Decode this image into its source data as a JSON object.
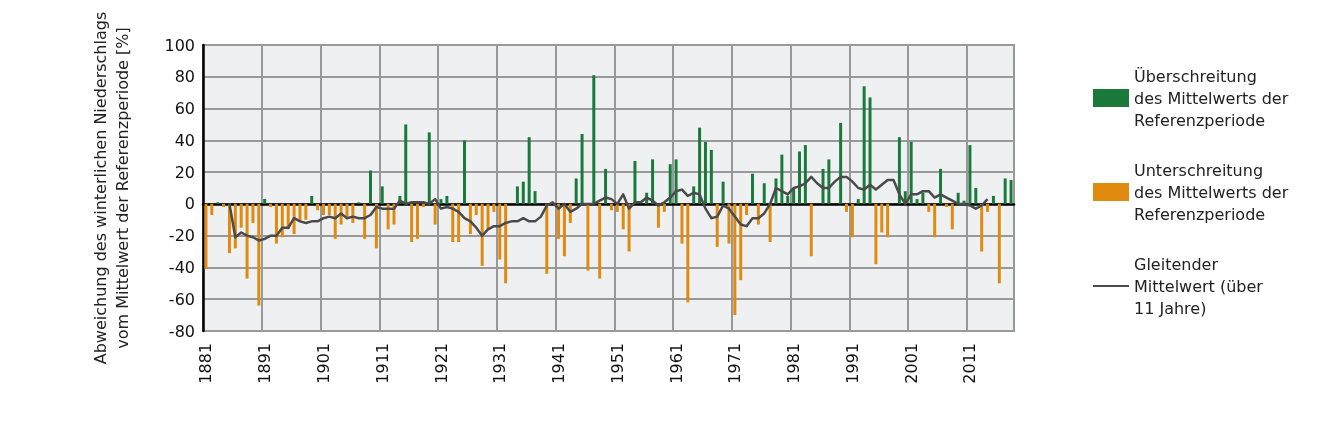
{
  "chart_data": {
    "type": "bar",
    "ylabel": "Abweichung des winterlichen Niederschlags vom Mittelwert der Referenzperiode [%]",
    "categories": [
      "1881",
      null,
      null,
      null,
      null,
      null,
      null,
      null,
      null,
      null,
      "1891",
      null,
      null,
      null,
      null,
      null,
      null,
      null,
      null,
      null,
      "1901",
      null,
      null,
      null,
      null,
      null,
      null,
      null,
      null,
      null,
      "1911",
      null,
      null,
      null,
      null,
      null,
      null,
      null,
      null,
      null,
      "1921",
      null,
      null,
      null,
      null,
      null,
      null,
      null,
      null,
      null,
      "1931",
      null,
      null,
      null,
      null,
      null,
      null,
      null,
      null,
      null,
      "1941",
      null,
      null,
      null,
      null,
      null,
      null,
      null,
      null,
      null,
      "1951",
      null,
      null,
      null,
      null,
      null,
      null,
      null,
      null,
      null,
      "1961",
      null,
      null,
      null,
      null,
      null,
      null,
      null,
      null,
      null,
      "1971",
      null,
      null,
      null,
      null,
      null,
      null,
      null,
      null,
      null,
      "1981",
      null,
      null,
      null,
      null,
      null,
      null,
      null,
      null,
      null,
      "1991",
      null,
      null,
      null,
      null,
      null,
      null,
      null,
      null,
      null,
      "2001",
      null,
      null,
      null,
      null,
      null,
      null,
      null,
      null,
      null,
      "2011",
      null,
      null,
      null,
      null,
      null,
      null,
      null
    ],
    "series": [
      {
        "name": "Überschreitung des Mittelwerts der Referenzperiode",
        "color": "#1a7a3c",
        "values": [
          null,
          null,
          1,
          null,
          null,
          null,
          null,
          null,
          null,
          null,
          3,
          null,
          null,
          null,
          null,
          null,
          null,
          null,
          5,
          null,
          null,
          null,
          null,
          null,
          null,
          null,
          1,
          null,
          21,
          null,
          11,
          null,
          null,
          5,
          50,
          null,
          null,
          null,
          45,
          null,
          3,
          5,
          null,
          null,
          40,
          null,
          null,
          null,
          null,
          null,
          null,
          null,
          null,
          11,
          14,
          42,
          8,
          null,
          null,
          null,
          null,
          null,
          null,
          16,
          44,
          null,
          81,
          null,
          22,
          null,
          null,
          null,
          null,
          27,
          null,
          7,
          28,
          null,
          null,
          25,
          28,
          null,
          null,
          11,
          48,
          39,
          34,
          null,
          14,
          null,
          null,
          null,
          null,
          19,
          null,
          13,
          null,
          16,
          31,
          5,
          10,
          33,
          37,
          null,
          null,
          22,
          28,
          null,
          51,
          null,
          null,
          3,
          74,
          67,
          null,
          null,
          null,
          null,
          42,
          8,
          39,
          3,
          7,
          null,
          null,
          22,
          null,
          null,
          7,
          2,
          37,
          10,
          null,
          null,
          5,
          null,
          16,
          15
        ]
      },
      {
        "name": "Unterschreitung des Mittelwerts der Referenzperiode",
        "color": "#e08a0f",
        "values": [
          -41,
          -7,
          null,
          -2,
          -31,
          -28,
          -15,
          -47,
          -12,
          -64,
          null,
          -2,
          -25,
          -21,
          -16,
          -19,
          -11,
          -10,
          null,
          -4,
          -7,
          -7,
          -22,
          -13,
          -8,
          -12,
          null,
          -22,
          null,
          -28,
          null,
          -16,
          -13,
          null,
          null,
          -24,
          -22,
          -2,
          null,
          -13,
          null,
          null,
          -24,
          -24,
          null,
          -19,
          -7,
          -39,
          -16,
          -5,
          -35,
          -50,
          null,
          null,
          null,
          null,
          null,
          null,
          -44,
          null,
          -22,
          -33,
          -12,
          null,
          null,
          -42,
          null,
          -47,
          null,
          -4,
          -5,
          -16,
          -30,
          null,
          null,
          null,
          null,
          -15,
          -5,
          null,
          null,
          -25,
          -62,
          null,
          null,
          null,
          null,
          -27,
          null,
          -25,
          -70,
          -48,
          -7,
          null,
          -13,
          null,
          -24,
          null,
          null,
          null,
          null,
          null,
          null,
          -33,
          null,
          null,
          null,
          null,
          null,
          -5,
          -21,
          null,
          null,
          null,
          -38,
          -18,
          -21,
          null,
          null,
          null,
          null,
          null,
          null,
          -5,
          -21,
          null,
          -2,
          -16,
          null,
          null,
          null,
          null,
          -30,
          -5,
          null,
          -50,
          null,
          null
        ]
      },
      {
        "name": "Gleitender Mittelwert (über 11 Jahre)",
        "type": "line",
        "color": "#4a4a4a",
        "values": [
          null,
          null,
          null,
          null,
          0,
          -21,
          -18,
          -20,
          -21,
          -23,
          -22,
          -20,
          -20,
          -15,
          -15,
          -9,
          -11,
          -12,
          -11,
          -11,
          -9,
          -8,
          -9,
          -6,
          -9,
          -8,
          -9,
          -9,
          -7,
          -2,
          -3,
          -3,
          -3,
          2,
          0,
          1,
          1,
          1,
          0,
          3,
          -3,
          -2,
          -3,
          -5,
          -9,
          -11,
          -15,
          -20,
          -16,
          -14,
          -14,
          -12,
          -11,
          -11,
          -9,
          -11,
          -11,
          -8,
          -1,
          1,
          -3,
          0,
          -5,
          -3,
          0,
          0,
          0,
          2,
          4,
          3,
          0,
          6,
          -3,
          1,
          1,
          4,
          2,
          -1,
          1,
          4,
          8,
          9,
          5,
          7,
          6,
          -3,
          -9,
          -8,
          -1,
          -3,
          -8,
          -13,
          -14,
          -9,
          -9,
          -6,
          0,
          10,
          8,
          6,
          10,
          11,
          13,
          17,
          13,
          10,
          10,
          14,
          17,
          17,
          14,
          10,
          9,
          12,
          9,
          12,
          15,
          15,
          6,
          0,
          6,
          6,
          8,
          8,
          4,
          6,
          4,
          2,
          0,
          0,
          -1,
          -3,
          -1,
          3,
          null,
          null,
          null,
          null
        ]
      }
    ],
    "stacked": true,
    "ylim": [
      -80,
      100
    ],
    "yticks": [
      -80,
      -60,
      -40,
      -20,
      0,
      20,
      40,
      60,
      80,
      100
    ],
    "grid": true,
    "legend": "right",
    "marker": "none"
  }
}
